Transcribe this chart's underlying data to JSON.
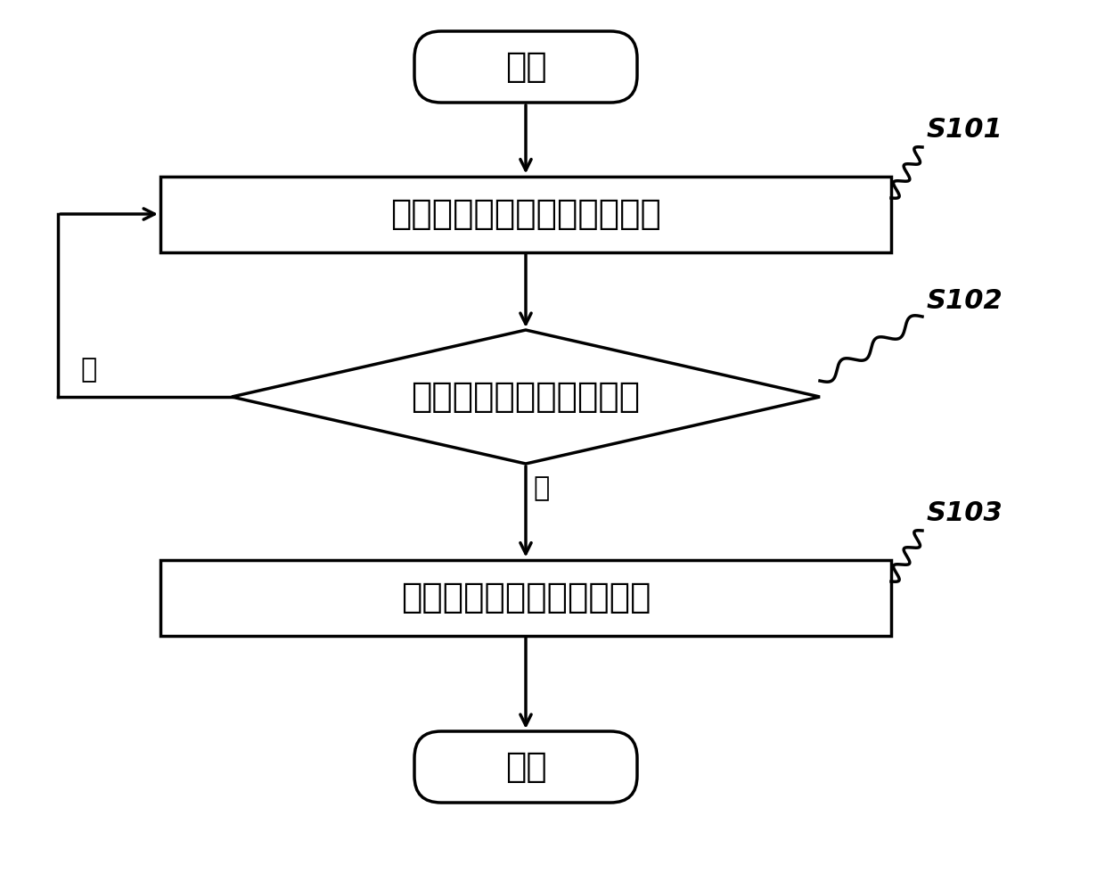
{
  "bg_color": "#ffffff",
  "line_color": "#000000",
  "fill_color": "#ffffff",
  "text_color": "#000000",
  "start_text": "开始",
  "box1_text": "确定车辆当前及未来路况信息",
  "diamond_text": "是否需要加大电池放电量",
  "box2_text": "提前对电池包进行冷却控制",
  "end_text": "结束",
  "label_s101": "S101",
  "label_s102": "S102",
  "label_s103": "S103",
  "yes_text": "是",
  "no_text": "否",
  "font_size_main": 28,
  "font_size_label": 22,
  "font_size_yn": 22,
  "lw_main": 2.5
}
